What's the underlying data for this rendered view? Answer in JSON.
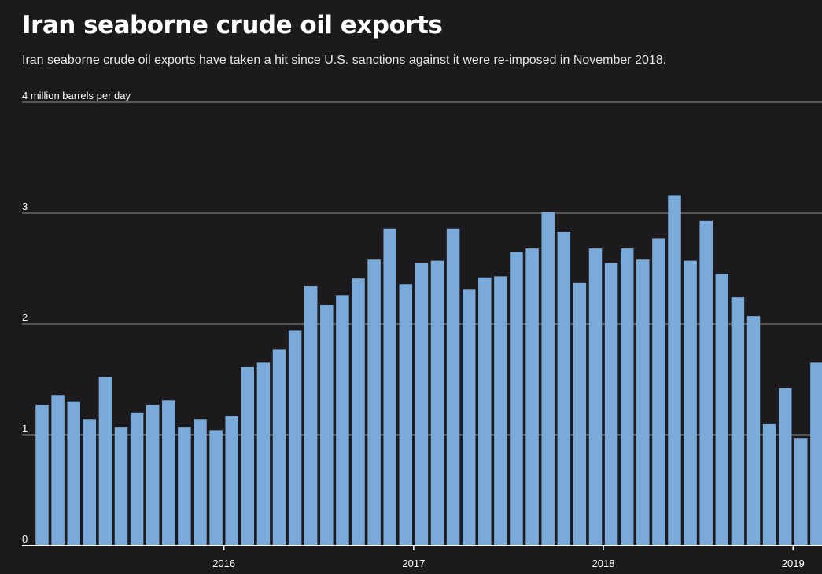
{
  "title": "Iran seaborne crude oil exports",
  "subtitle": "Iran seaborne crude oil exports have taken a hit since U.S. sanctions against it were re-imposed in November 2018.",
  "colors": {
    "background": "#1c1a1d",
    "bar": "#7aaad9",
    "grid": "#7a7a7a",
    "baseline": "#ffffff",
    "text": "#ffffff"
  },
  "chart_data": {
    "type": "bar",
    "ylabel": "4 million barrels per day",
    "ylim": [
      0,
      4
    ],
    "y_ticks": [
      {
        "value": 0,
        "label": "0"
      },
      {
        "value": 1,
        "label": "1"
      },
      {
        "value": 2,
        "label": "2"
      },
      {
        "value": 3,
        "label": "3"
      },
      {
        "value": 4,
        "label": ""
      }
    ],
    "x_ticks": [
      {
        "index": 11.5,
        "label": "2016"
      },
      {
        "index": 23.5,
        "label": "2017"
      },
      {
        "index": 35.5,
        "label": "2018"
      },
      {
        "index": 47.5,
        "label": "2019"
      }
    ],
    "grid": true,
    "values": [
      1.27,
      1.36,
      1.3,
      1.14,
      1.52,
      1.07,
      1.2,
      1.27,
      1.31,
      1.07,
      1.14,
      1.04,
      1.17,
      1.61,
      1.65,
      1.77,
      1.94,
      2.34,
      2.17,
      2.26,
      2.41,
      2.58,
      2.86,
      2.36,
      2.55,
      2.57,
      2.86,
      2.31,
      2.42,
      2.43,
      2.65,
      2.68,
      3.01,
      2.83,
      2.37,
      2.68,
      2.55,
      2.68,
      2.58,
      2.77,
      3.16,
      2.57,
      2.93,
      2.45,
      2.24,
      2.07,
      1.1,
      1.42,
      0.97,
      1.65
    ]
  }
}
